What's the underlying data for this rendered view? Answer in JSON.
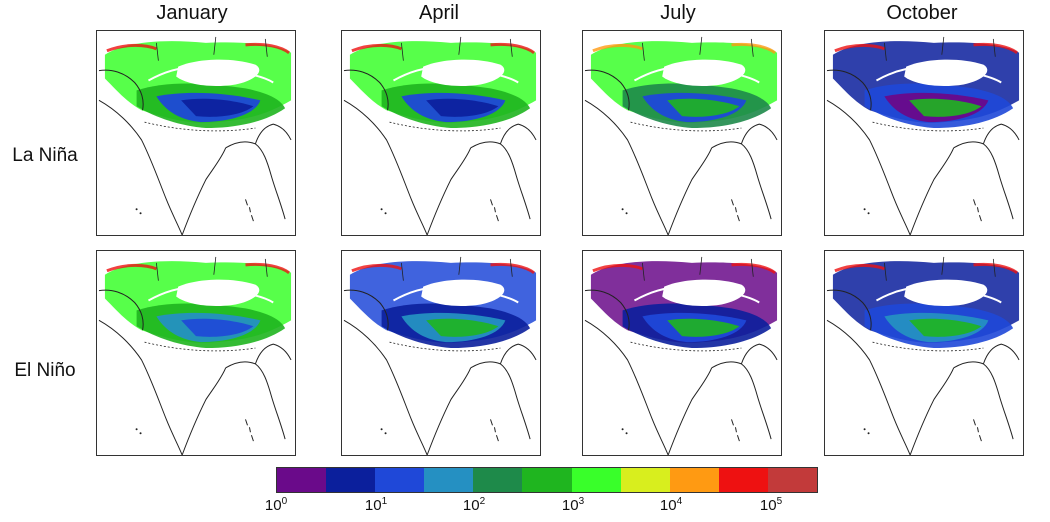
{
  "columns": [
    "January",
    "April",
    "July",
    "October"
  ],
  "rows": [
    "La Niña",
    "El Niño"
  ],
  "colorbar": {
    "colors": [
      "#6a0a8a",
      "#0b1f9c",
      "#1f48d8",
      "#2590c2",
      "#1e8a4a",
      "#1fb51f",
      "#39ff2a",
      "#d8ee1e",
      "#ff9a12",
      "#ee1111",
      "#c23a3a"
    ],
    "ticks": [
      {
        "base": "10",
        "exp": "0"
      },
      {
        "base": "10",
        "exp": "1"
      },
      {
        "base": "10",
        "exp": "2"
      },
      {
        "base": "10",
        "exp": "3"
      },
      {
        "base": "10",
        "exp": "4"
      },
      {
        "base": "10",
        "exp": "5"
      }
    ]
  }
}
